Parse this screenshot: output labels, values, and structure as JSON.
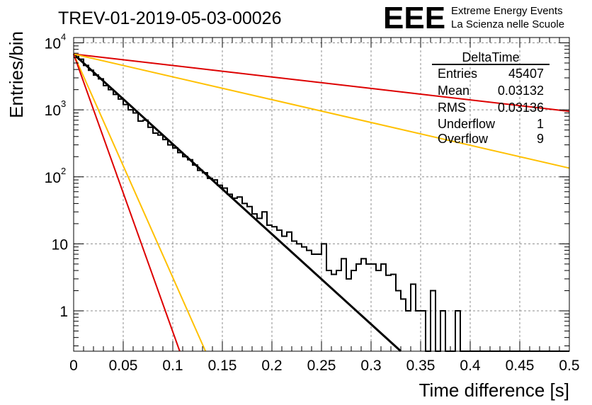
{
  "chart_data": {
    "type": "histogram",
    "title": "TREV-01-2019-05-03-00026",
    "xlabel": "Time difference [s]",
    "ylabel": "Entries/bin",
    "xlim": [
      0,
      0.5
    ],
    "ylim": [
      0.25,
      12000
    ],
    "yscale": "log",
    "grid": true,
    "x_ticks": [
      {
        "v": 0,
        "label": "0"
      },
      {
        "v": 0.05,
        "label": "0.05"
      },
      {
        "v": 0.1,
        "label": "0.1"
      },
      {
        "v": 0.15,
        "label": "0.15"
      },
      {
        "v": 0.2,
        "label": "0.2"
      },
      {
        "v": 0.25,
        "label": "0.25"
      },
      {
        "v": 0.3,
        "label": "0.3"
      },
      {
        "v": 0.35,
        "label": "0.35"
      },
      {
        "v": 0.4,
        "label": "0.4"
      },
      {
        "v": 0.45,
        "label": "0.45"
      },
      {
        "v": 0.5,
        "label": "0.5"
      }
    ],
    "y_ticks": [
      {
        "v": 1,
        "label": "1"
      },
      {
        "v": 10,
        "label": "10"
      },
      {
        "v": 100,
        "label": "10",
        "exp": "2"
      },
      {
        "v": 1000,
        "label": "10",
        "exp": "3"
      },
      {
        "v": 10000,
        "label": "10",
        "exp": "4"
      }
    ],
    "bin_width": 0.005,
    "histogram": {
      "color": "#000000",
      "counts": [
        6600,
        5700,
        4600,
        3900,
        3300,
        2900,
        2300,
        2000,
        1700,
        1450,
        1200,
        1000,
        900,
        680,
        700,
        550,
        450,
        420,
        360,
        300,
        270,
        230,
        200,
        180,
        150,
        125,
        115,
        95,
        90,
        75,
        68,
        55,
        48,
        50,
        40,
        36,
        28,
        24,
        30,
        19,
        18,
        16,
        13,
        15,
        11,
        10,
        9,
        8,
        7,
        7,
        10,
        4,
        3.5,
        4,
        6,
        3,
        4,
        5,
        6,
        5,
        5,
        4,
        5,
        3.4,
        3.5,
        2,
        1.5,
        1,
        2.5,
        1,
        1,
        0,
        2,
        0,
        1,
        0,
        0,
        1,
        0,
        0,
        0,
        0,
        0,
        0,
        0,
        0,
        0,
        0,
        0,
        0,
        0,
        0,
        0,
        0,
        0,
        0,
        0,
        0,
        0,
        0
      ]
    },
    "series": [
      {
        "color": "#000000",
        "x": [
          0,
          0.33
        ],
        "y": [
          6800,
          0.25
        ]
      },
      {
        "color": "#dd0000",
        "x": [
          0,
          0.5
        ],
        "y": [
          6800,
          950
        ]
      },
      {
        "color": "#ffc000",
        "x": [
          0,
          0.5
        ],
        "y": [
          6800,
          135
        ]
      },
      {
        "color": "#ffc000",
        "x": [
          0,
          0.133
        ],
        "y": [
          6800,
          0.25
        ]
      },
      {
        "color": "#dd0000",
        "x": [
          0,
          0.107
        ],
        "y": [
          6800,
          0.25
        ]
      }
    ],
    "stats_box": {
      "title": "DeltaTime",
      "rows": [
        {
          "label": "Entries",
          "value": "45407"
        },
        {
          "label": "Mean",
          "value": "0.03132"
        },
        {
          "label": "RMS",
          "value": "0.03136"
        },
        {
          "label": "Underflow",
          "value": "1"
        },
        {
          "label": "Overflow",
          "value": "9"
        }
      ]
    },
    "logo": {
      "mark": "EEE",
      "line1": "Extreme Energy Events",
      "line2": "La Scienza nelle Scuole",
      "color": "#1a1aff"
    }
  }
}
